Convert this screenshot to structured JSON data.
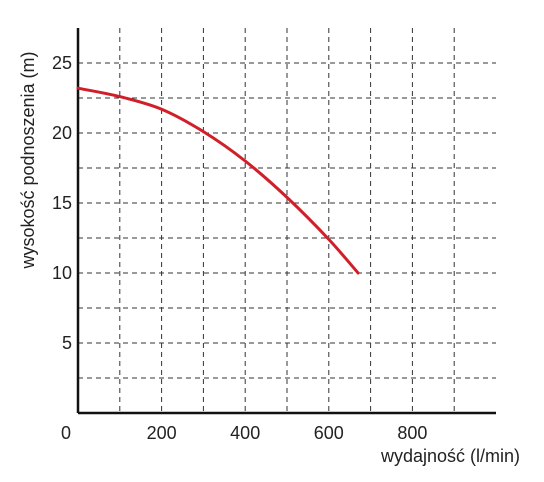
{
  "chart_data": {
    "type": "line",
    "xlabel": "wydajność (l/min)",
    "ylabel": "wysokość podnoszenia (m)",
    "xlim": [
      0,
      1000
    ],
    "ylim": [
      0,
      27.5
    ],
    "x_ticks": [
      0,
      200,
      400,
      600,
      800
    ],
    "y_ticks": [
      5,
      10,
      15,
      20,
      25
    ],
    "x_grid": [
      100,
      200,
      300,
      400,
      500,
      600,
      700,
      800,
      900
    ],
    "y_grid": [
      2.5,
      5,
      7.5,
      10,
      12.5,
      15,
      17.5,
      20,
      22.5,
      25
    ],
    "grid": true,
    "series": [
      {
        "color": "#d11f2a",
        "x": [
          0,
          100,
          200,
          300,
          400,
          500,
          600,
          670
        ],
        "y": [
          23.2,
          22.6,
          21.7,
          20.1,
          18.0,
          15.4,
          12.4,
          10.0
        ]
      }
    ]
  }
}
